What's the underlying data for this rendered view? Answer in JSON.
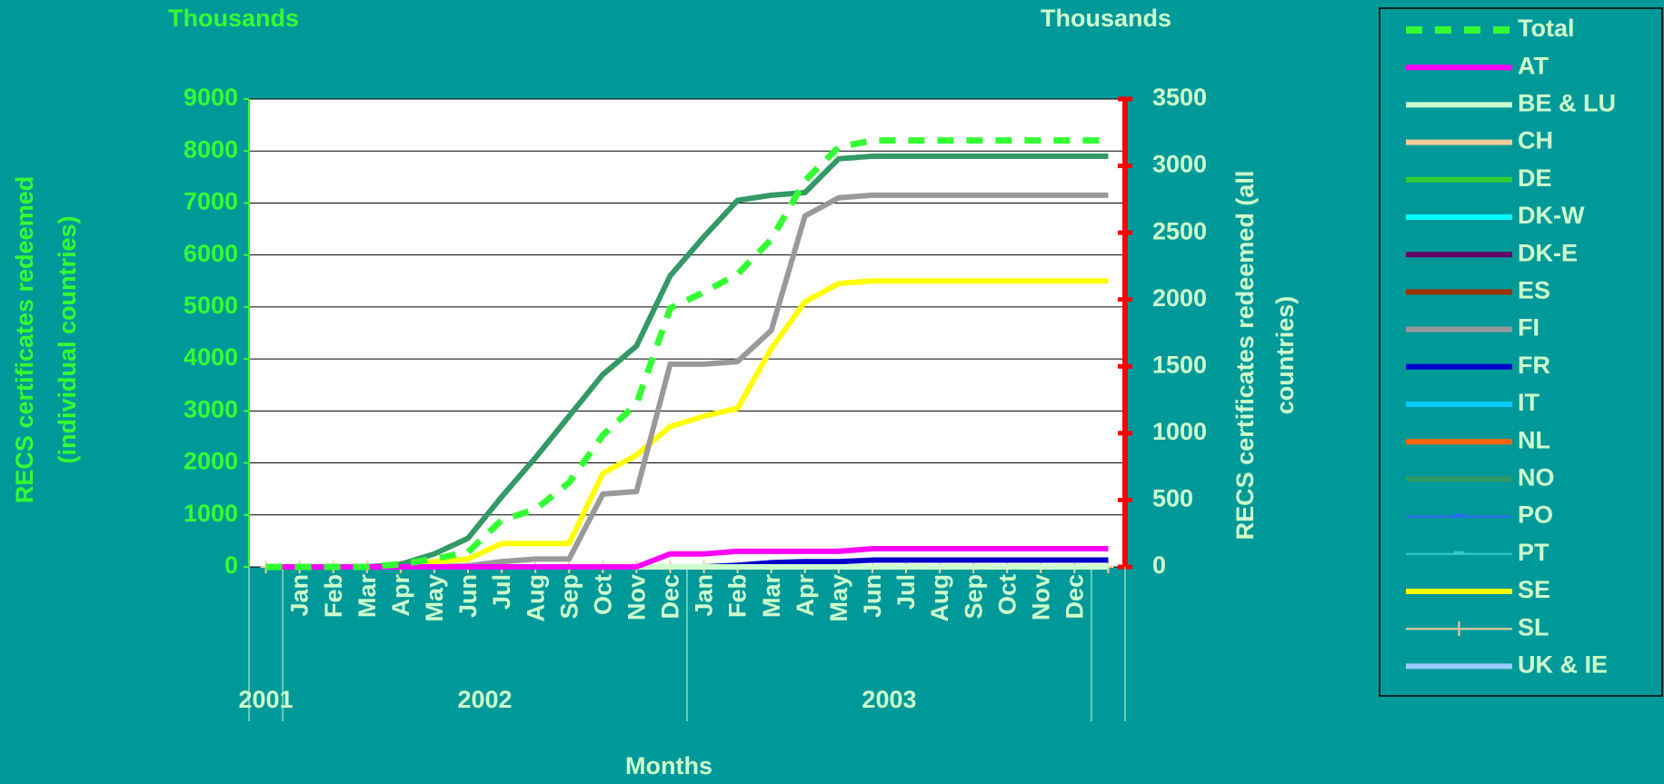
{
  "chart_data": {
    "type": "line",
    "left_unit": "Thousands",
    "right_unit": "Thousands",
    "ylabel_lines": [
      "RECS certificates redeemed",
      "(individual countries)"
    ],
    "y2label_lines": [
      "RECS certificates redeemed (all",
      "countries)"
    ],
    "xlabel": "Months",
    "categories": [
      null,
      "Jan",
      "Feb",
      "Mar",
      "Apr",
      "May",
      "Jun",
      "Jul",
      "Aug",
      "Sep",
      "Oct",
      "Nov",
      "Dec",
      "Jan",
      "Feb",
      "Mar",
      "Apr",
      "May",
      "Jun",
      "Jul",
      "Aug",
      "Sep",
      "Oct",
      "Nov",
      "Dec",
      null
    ],
    "x_groups": [
      "2001",
      "2002",
      "2003"
    ],
    "ylim": [
      0,
      9000
    ],
    "yticks": [
      0,
      1000,
      2000,
      3000,
      4000,
      5000,
      6000,
      7000,
      8000,
      9000
    ],
    "y2lim": [
      0,
      3500
    ],
    "y2ticks": [
      0,
      500,
      1000,
      1500,
      2000,
      2500,
      3000,
      3500
    ],
    "grid": true,
    "series": [
      {
        "name": "Total",
        "color": "#33ff33",
        "style": "dashed",
        "axis": "y2",
        "values": [
          0,
          0,
          0,
          0,
          20,
          60,
          110,
          350,
          430,
          630,
          985,
          1220,
          1935,
          2055,
          2190,
          2450,
          2890,
          3140,
          3190,
          3190,
          3190,
          3190,
          3190,
          3190,
          3190,
          3190
        ]
      },
      {
        "name": "AT",
        "color": "#ff00ff",
        "values": [
          0,
          0,
          0,
          0,
          0,
          0,
          0,
          0,
          0,
          0,
          0,
          0,
          250,
          250,
          300,
          300,
          300,
          300,
          350,
          350,
          350,
          350,
          350,
          350,
          350,
          350
        ]
      },
      {
        "name": "BE & LU",
        "color": "#ccffcc",
        "values": [
          0,
          0,
          0,
          0,
          0,
          0,
          0,
          0,
          0,
          0,
          0,
          0,
          0,
          0,
          0,
          0,
          0,
          0,
          0,
          0,
          0,
          0,
          0,
          0,
          0,
          0
        ]
      },
      {
        "name": "CH",
        "color": "#ffcc99",
        "values": [
          0,
          0,
          0,
          0,
          0,
          0,
          0,
          0,
          0,
          0,
          0,
          0,
          0,
          0,
          0,
          0,
          0,
          0,
          0,
          0,
          0,
          0,
          0,
          0,
          0,
          0
        ]
      },
      {
        "name": "DE",
        "color": "#33cc33",
        "values": [
          0,
          0,
          0,
          0,
          0,
          0,
          0,
          0,
          0,
          0,
          0,
          0,
          0,
          0,
          0,
          0,
          0,
          0,
          0,
          0,
          0,
          0,
          0,
          0,
          0,
          0
        ]
      },
      {
        "name": "DK-W",
        "color": "#00ffff",
        "values": [
          0,
          0,
          0,
          0,
          0,
          0,
          0,
          0,
          0,
          0,
          0,
          0,
          0,
          0,
          0,
          0,
          0,
          0,
          0,
          0,
          0,
          0,
          0,
          0,
          0,
          0
        ]
      },
      {
        "name": "DK-E",
        "color": "#660066",
        "values": [
          0,
          0,
          0,
          0,
          0,
          0,
          0,
          0,
          0,
          0,
          0,
          0,
          0,
          0,
          0,
          0,
          0,
          0,
          0,
          0,
          0,
          0,
          0,
          0,
          0,
          0
        ]
      },
      {
        "name": "ES",
        "color": "#993300",
        "values": [
          0,
          0,
          0,
          0,
          0,
          0,
          0,
          0,
          0,
          0,
          0,
          0,
          0,
          0,
          0,
          0,
          0,
          0,
          0,
          0,
          0,
          0,
          0,
          0,
          0,
          0
        ]
      },
      {
        "name": "FI",
        "color": "#999999",
        "values": [
          0,
          0,
          0,
          0,
          0,
          0,
          20,
          100,
          150,
          150,
          1400,
          1450,
          3900,
          3900,
          3950,
          4550,
          6750,
          7100,
          7150,
          7150,
          7150,
          7150,
          7150,
          7150,
          7150,
          7150
        ]
      },
      {
        "name": "FR",
        "color": "#0000cc",
        "values": [
          0,
          0,
          0,
          0,
          0,
          0,
          0,
          0,
          0,
          0,
          0,
          0,
          0,
          0,
          30,
          80,
          100,
          100,
          130,
          130,
          130,
          130,
          130,
          130,
          130,
          130
        ]
      },
      {
        "name": "IT",
        "color": "#00ccff",
        "values": [
          0,
          0,
          0,
          0,
          0,
          0,
          0,
          0,
          0,
          0,
          0,
          0,
          0,
          0,
          0,
          0,
          0,
          0,
          0,
          0,
          0,
          0,
          0,
          0,
          0,
          0
        ]
      },
      {
        "name": "NL",
        "color": "#ff6600",
        "values": [
          0,
          0,
          0,
          0,
          0,
          0,
          0,
          0,
          0,
          0,
          0,
          0,
          0,
          0,
          0,
          0,
          0,
          0,
          0,
          0,
          0,
          0,
          0,
          0,
          0,
          0
        ]
      },
      {
        "name": "NO",
        "color": "#339966",
        "values": [
          0,
          0,
          0,
          0,
          50,
          250,
          550,
          1350,
          2100,
          2900,
          3700,
          4250,
          5600,
          6350,
          7050,
          7150,
          7200,
          7850,
          7900,
          7900,
          7900,
          7900,
          7900,
          7900,
          7900,
          7900
        ]
      },
      {
        "name": "PO",
        "color": "#3366ff",
        "style": "thin",
        "values": [
          0,
          0,
          0,
          0,
          0,
          0,
          0,
          0,
          0,
          0,
          0,
          0,
          0,
          0,
          0,
          0,
          0,
          0,
          0,
          0,
          0,
          0,
          0,
          0,
          0,
          0
        ]
      },
      {
        "name": "PT",
        "color": "#33cccc",
        "style": "thin",
        "values": [
          0,
          0,
          0,
          0,
          0,
          0,
          0,
          0,
          0,
          0,
          0,
          0,
          0,
          0,
          0,
          0,
          0,
          0,
          0,
          0,
          0,
          0,
          0,
          0,
          0,
          0
        ]
      },
      {
        "name": "SE",
        "color": "#ffff00",
        "values": [
          0,
          0,
          0,
          0,
          30,
          100,
          150,
          450,
          450,
          450,
          1800,
          2150,
          2700,
          2900,
          3050,
          4200,
          5100,
          5450,
          5500,
          5500,
          5500,
          5500,
          5500,
          5500,
          5500,
          5500
        ]
      },
      {
        "name": "SL",
        "color": "#ffcc99",
        "style": "plus",
        "values": [
          0,
          0,
          0,
          0,
          0,
          0,
          0,
          0,
          0,
          0,
          0,
          0,
          0,
          0,
          0,
          0,
          0,
          0,
          0,
          0,
          0,
          0,
          0,
          0,
          0,
          0
        ]
      },
      {
        "name": "UK & IE",
        "color": "#99ccff",
        "values": [
          0,
          0,
          0,
          0,
          0,
          0,
          0,
          0,
          0,
          0,
          0,
          0,
          0,
          0,
          0,
          0,
          0,
          0,
          0,
          0,
          0,
          0,
          0,
          0,
          0,
          0
        ]
      }
    ]
  }
}
